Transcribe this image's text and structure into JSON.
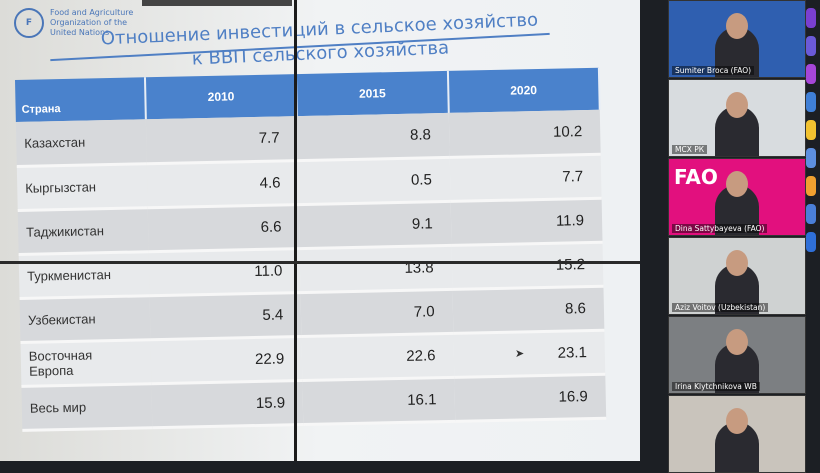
{
  "slide": {
    "logo_text": "Food and Agriculture Organization of the United Nations",
    "logo_mark": "FAO",
    "title_line1": "Отношение инвестиций в сельское хозяйство",
    "title_line2": "к ВВП сельского хозяйства",
    "table": {
      "headers": [
        "Страна",
        "2010",
        "2015",
        "2020"
      ],
      "rows": [
        [
          "Казахстан",
          "7.7",
          "8.8",
          "10.2"
        ],
        [
          "Кыргызстан",
          "4.6",
          "0.5",
          "7.7"
        ],
        [
          "Таджикистан",
          "6.6",
          "9.1",
          "11.9"
        ],
        [
          "Туркменистан",
          "11.0",
          "13.8",
          "15.2"
        ],
        [
          "Узбекистан",
          "5.4",
          "7.0",
          "8.6"
        ],
        [
          "Восточная Европа",
          "22.9",
          "22.6",
          "23.1"
        ],
        [
          "Весь мир",
          "15.9",
          "16.1",
          "16.9"
        ]
      ]
    },
    "accent": "#4a82cc"
  },
  "participants": [
    {
      "name": "Sumiter Broca (FAO)",
      "bg": "#2f5fb0"
    },
    {
      "name": "МСХ РК",
      "bg": "#d8dcdf"
    },
    {
      "name": "Dina Sattybayeva (FAO)",
      "bg": "#e2107e"
    },
    {
      "name": "Aziz Voitov (Uzbekistan)",
      "bg": "#cfd2d2"
    },
    {
      "name": "Irina Klytchnikova WB",
      "bg": "#7c7f82"
    },
    {
      "name": "",
      "bg": "#c9c4bc"
    }
  ],
  "fao_tile_text": "FAO"
}
